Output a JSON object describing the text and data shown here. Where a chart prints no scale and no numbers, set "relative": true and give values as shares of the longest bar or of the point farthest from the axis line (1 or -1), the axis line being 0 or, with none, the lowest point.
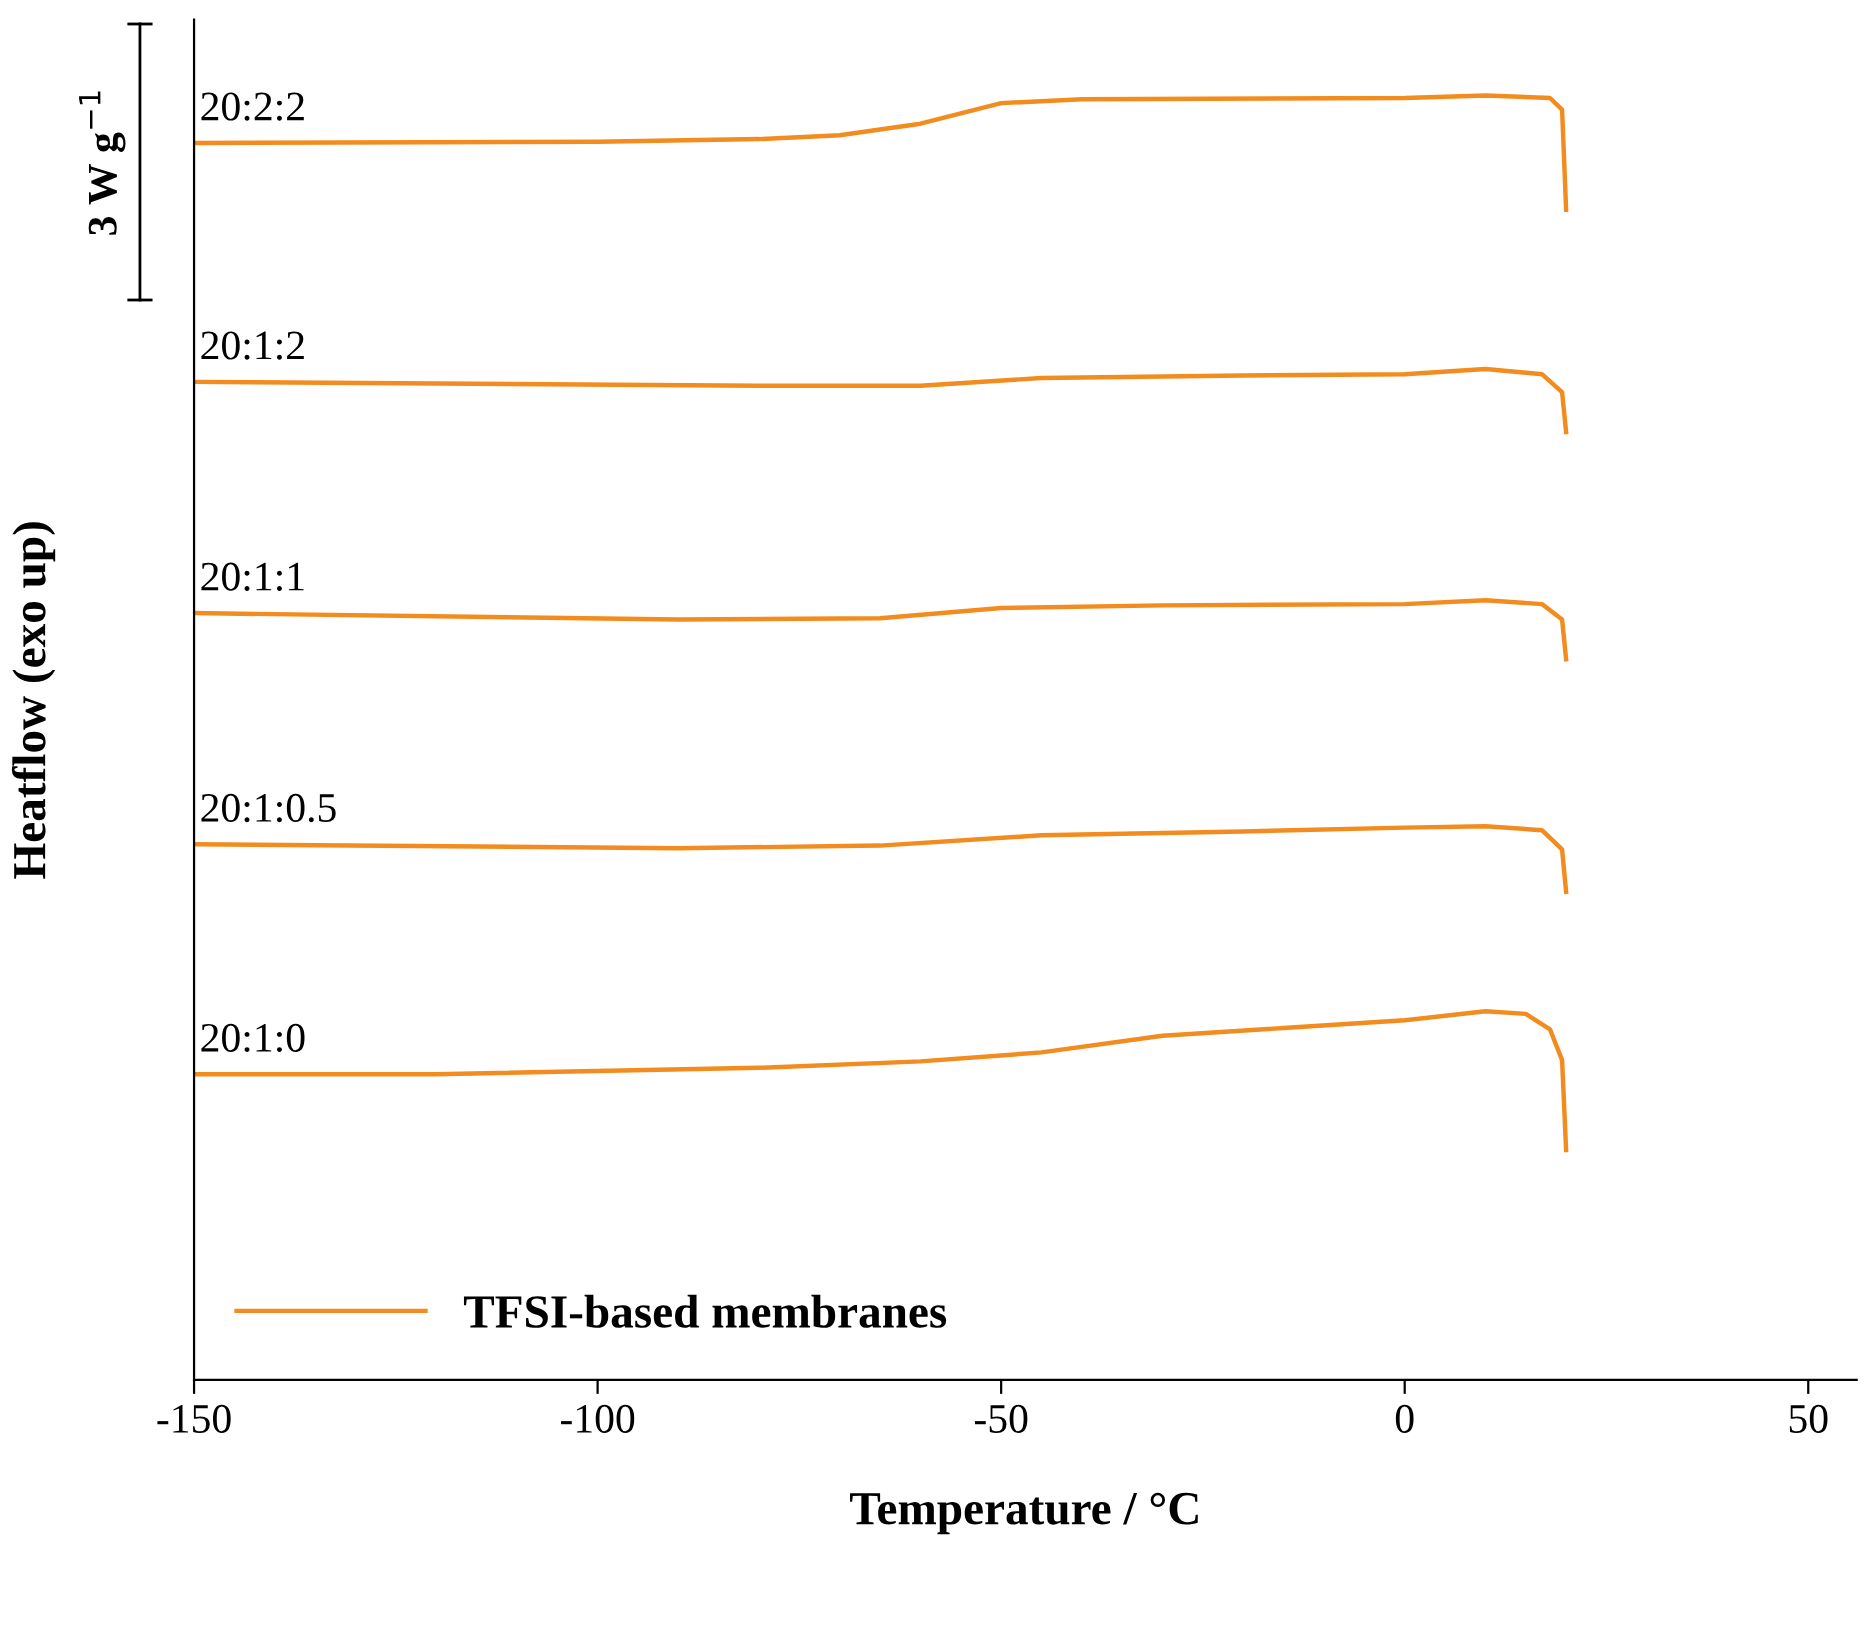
{
  "chart_data": {
    "type": "line",
    "relative": true,
    "xlabel": "Temperature / °C",
    "ylabel": "Heatflow (exo up)",
    "xlim": [
      -150,
      56
    ],
    "xticks": [
      -150,
      -100,
      -50,
      0,
      50
    ],
    "tick_labels": "x",
    "grid": false,
    "legend": "bottom left",
    "marker": "none",
    "line_style": "solid",
    "annotations": [
      "3 W g$^{−1}$",
      {
        "text": "20:2:2",
        "y": 0.963
      },
      {
        "text": "20:1:2",
        "y": 0.777
      },
      {
        "text": "20:1:1",
        "y": 0.597
      },
      {
        "text": "20:1:0.5",
        "y": 0.417
      },
      {
        "text": "20:1:0",
        "y": 0.238
      }
    ],
    "series": [
      {
        "name": "TFSI-based membranes",
        "color": "#f28c1e",
        "x": [
          -150,
          -100,
          -80,
          -70,
          -60,
          -50,
          -40,
          0,
          10,
          18,
          19.5,
          20
        ],
        "values": [
          0.963,
          0.964,
          0.966,
          0.969,
          0.978,
          0.994,
          0.997,
          0.998,
          1.0,
          0.998,
          0.989,
          0.911
        ]
      },
      {
        "color": "#f28c1e",
        "x": [
          -150,
          -80,
          -60,
          -45,
          -20,
          0,
          10,
          17,
          19.5,
          20
        ],
        "values": [
          0.777,
          0.774,
          0.774,
          0.78,
          0.782,
          0.783,
          0.787,
          0.783,
          0.769,
          0.738
        ]
      },
      {
        "color": "#f28c1e",
        "x": [
          -150,
          -90,
          -65,
          -50,
          -30,
          0,
          10,
          17,
          19.5,
          20
        ],
        "values": [
          0.597,
          0.592,
          0.593,
          0.601,
          0.603,
          0.604,
          0.607,
          0.604,
          0.592,
          0.561
        ]
      },
      {
        "color": "#f28c1e",
        "x": [
          -150,
          -90,
          -65,
          -45,
          -20,
          0,
          10,
          17,
          19.5,
          20
        ],
        "values": [
          0.417,
          0.414,
          0.416,
          0.424,
          0.427,
          0.43,
          0.431,
          0.428,
          0.413,
          0.38
        ]
      },
      {
        "color": "#f28c1e",
        "x": [
          -150,
          -120,
          -80,
          -60,
          -45,
          -30,
          -15,
          0,
          10,
          15,
          18,
          19.5,
          20
        ],
        "values": [
          0.238,
          0.238,
          0.243,
          0.248,
          0.255,
          0.268,
          0.274,
          0.28,
          0.287,
          0.285,
          0.273,
          0.249,
          0.179
        ]
      }
    ]
  }
}
